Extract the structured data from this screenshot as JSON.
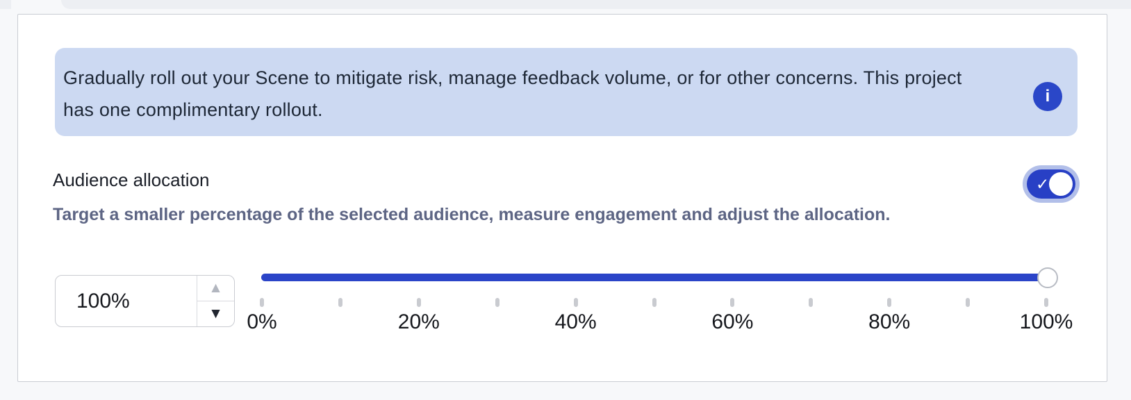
{
  "banner": {
    "text": "Gradually roll out your Scene to mitigate risk, manage feedback volume, or for other concerns. This project has one complimentary rollout.",
    "info_icon_glyph": "i",
    "background_color": "#ccd9f2",
    "icon_color": "#2a47c8"
  },
  "audience": {
    "label": "Audience allocation",
    "description": "Target a smaller percentage of the selected audience, measure engagement and adjust the allocation.",
    "toggle_on": true,
    "toggle_check_glyph": "✓",
    "toggle_on_color": "#2840c5",
    "toggle_halo_color": "#b2bfe9"
  },
  "allocation": {
    "value": "100%",
    "stepper": {
      "up_glyph": "▲",
      "down_glyph": "▼",
      "up_disabled": true
    },
    "slider": {
      "value_percent": 100,
      "track_color": "#2b44c8",
      "tick_percents": [
        0,
        10,
        20,
        30,
        40,
        50,
        60,
        70,
        80,
        90,
        100
      ],
      "labels": [
        {
          "percent": 0,
          "text": "0%"
        },
        {
          "percent": 20,
          "text": "20%"
        },
        {
          "percent": 40,
          "text": "40%"
        },
        {
          "percent": 60,
          "text": "60%"
        },
        {
          "percent": 80,
          "text": "80%"
        },
        {
          "percent": 100,
          "text": "100%"
        }
      ]
    }
  }
}
